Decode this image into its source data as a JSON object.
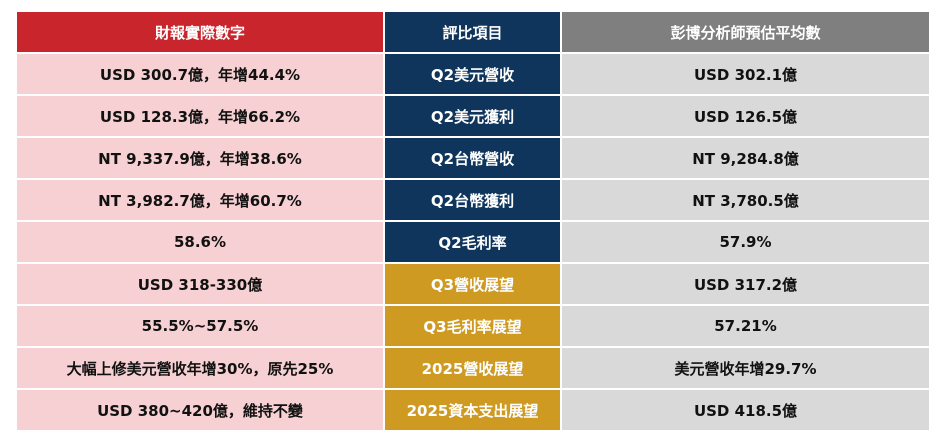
{
  "headers": {
    "actual": "財報實際數字",
    "item": "評比項目",
    "estimate": "彭博分析師預估平均數"
  },
  "rows": [
    {
      "actual": "USD 300.7億，年增44.4%",
      "item": "Q2美元營收",
      "estimate": "USD 302.1億",
      "item_color": "navy"
    },
    {
      "actual": "USD 128.3億，年增66.2%",
      "item": "Q2美元獲利",
      "estimate": "USD 126.5億",
      "item_color": "navy"
    },
    {
      "actual": "NT 9,337.9億，年增38.6%",
      "item": "Q2台幣營收",
      "estimate": "NT 9,284.8億",
      "item_color": "navy"
    },
    {
      "actual": "NT 3,982.7億，年增60.7%",
      "item": "Q2台幣獲利",
      "estimate": "NT 3,780.5億",
      "item_color": "navy"
    },
    {
      "actual": "58.6%",
      "item": "Q2毛利率",
      "estimate": "57.9%",
      "item_color": "navy"
    },
    {
      "actual": "USD 318-330億",
      "item": "Q3營收展望",
      "estimate": "USD 317.2億",
      "item_color": "gold"
    },
    {
      "actual": "55.5%~57.5%",
      "item": "Q3毛利率展望",
      "estimate": "57.21%",
      "item_color": "gold"
    },
    {
      "actual": "大幅上修美元營收年增30%，原先25%",
      "item": "2025營收展望",
      "estimate": "美元營收年增29.7%",
      "item_color": "gold"
    },
    {
      "actual": "USD 380~420億，維持不變",
      "item": "2025資本支出展望",
      "estimate": "USD 418.5億",
      "item_color": "gold"
    }
  ],
  "colors": {
    "header_actual": "#c9252c",
    "header_item": "#0f355c",
    "header_estimate": "#7f7f7f",
    "actual_bg": "#f6d0d2",
    "estimate_bg": "#d9d9d9",
    "navy": "#0f355c",
    "gold": "#cf9a22"
  }
}
